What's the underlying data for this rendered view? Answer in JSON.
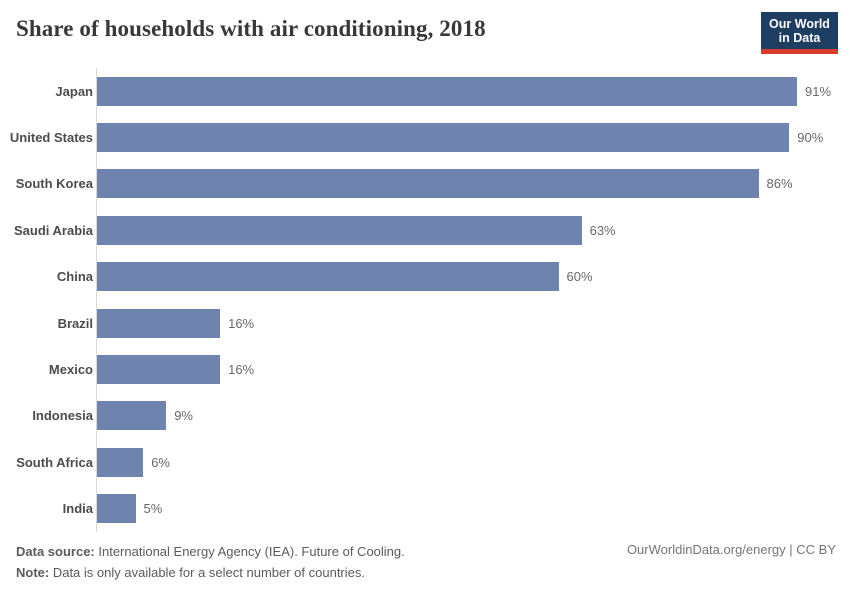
{
  "title": "Share of households with air conditioning, 2018",
  "logo": {
    "line1": "Our World",
    "line2": "in Data"
  },
  "chart_data": {
    "type": "bar",
    "orientation": "horizontal",
    "title": "Share of households with air conditioning, 2018",
    "categories": [
      "Japan",
      "United States",
      "South Korea",
      "Saudi Arabia",
      "China",
      "Brazil",
      "Mexico",
      "Indonesia",
      "South Africa",
      "India"
    ],
    "values": [
      91,
      90,
      86,
      63,
      60,
      16,
      16,
      9,
      6,
      5
    ],
    "value_labels": [
      "91%",
      "90%",
      "86%",
      "63%",
      "60%",
      "16%",
      "16%",
      "9%",
      "6%",
      "5%"
    ],
    "unit": "%",
    "xlim": [
      0,
      95
    ],
    "grid": false,
    "legend": "none",
    "bar_color": "#6e84ae",
    "axis_color": "#d9d9d9"
  },
  "footer": {
    "source_label": "Data source:",
    "source_text": " International Energy Agency (IEA). Future of Cooling.",
    "note_label": "Note:",
    "note_text": " Data is only available for a select number of countries.",
    "link": "OurWorldinData.org/energy | CC BY"
  }
}
